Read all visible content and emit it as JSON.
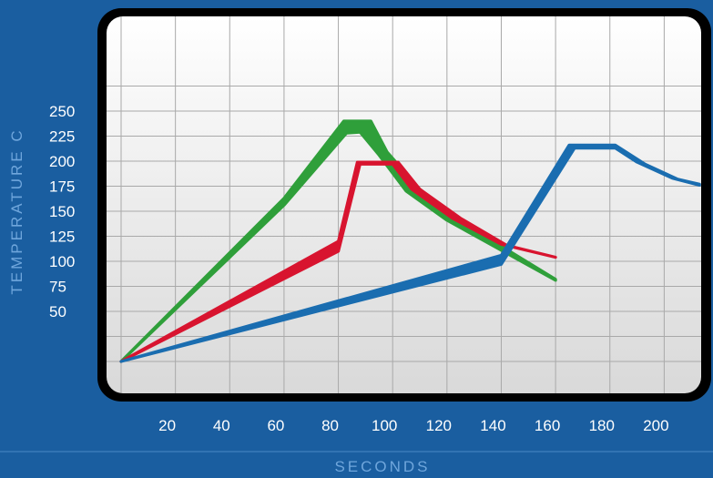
{
  "chart_data": {
    "type": "line",
    "ylabel": "TEMPERATURE C",
    "xlabel": "SECONDS",
    "x_ticks": [
      "20",
      "40",
      "60",
      "80",
      "100",
      "120",
      "140",
      "160",
      "180",
      "200"
    ],
    "y_ticks": [
      "50",
      "75",
      "100",
      "125",
      "150",
      "175",
      "200",
      "225",
      "250"
    ],
    "grid": true,
    "series": [
      {
        "color": "#2f9f3a",
        "upper": [
          [
            0,
            0
          ],
          [
            60,
            163
          ],
          [
            82,
            240
          ],
          [
            92,
            240
          ],
          [
            98,
            209
          ],
          [
            110,
            172
          ],
          [
            125,
            140
          ],
          [
            160,
            82
          ]
        ],
        "lower": [
          [
            0,
            0
          ],
          [
            60,
            156
          ],
          [
            83,
            228
          ],
          [
            88,
            229
          ],
          [
            95,
            206
          ],
          [
            105,
            170
          ],
          [
            120,
            141
          ],
          [
            160,
            81
          ]
        ]
      },
      {
        "color": "#d8142f",
        "upper": [
          [
            0,
            0
          ],
          [
            80,
            120
          ],
          [
            87,
            199
          ],
          [
            102,
            199
          ],
          [
            110,
            172
          ],
          [
            125,
            143
          ],
          [
            142,
            116
          ],
          [
            160,
            104
          ]
        ],
        "lower": [
          [
            0,
            0
          ],
          [
            80,
            110
          ],
          [
            88,
            197
          ],
          [
            100,
            197
          ],
          [
            107,
            172
          ],
          [
            122,
            143
          ],
          [
            140,
            117
          ],
          [
            160,
            104
          ]
        ]
      },
      {
        "color": "#1a6db0",
        "upper": [
          [
            0,
            0
          ],
          [
            140,
            106
          ],
          [
            165,
            216
          ],
          [
            182,
            216
          ],
          [
            193,
            197
          ],
          [
            205,
            182
          ],
          [
            213,
            177
          ]
        ],
        "lower": [
          [
            0,
            0
          ],
          [
            140,
            97
          ],
          [
            167,
            213
          ],
          [
            182,
            213
          ],
          [
            190,
            199
          ],
          [
            203,
            183
          ],
          [
            213,
            176
          ]
        ]
      }
    ]
  }
}
